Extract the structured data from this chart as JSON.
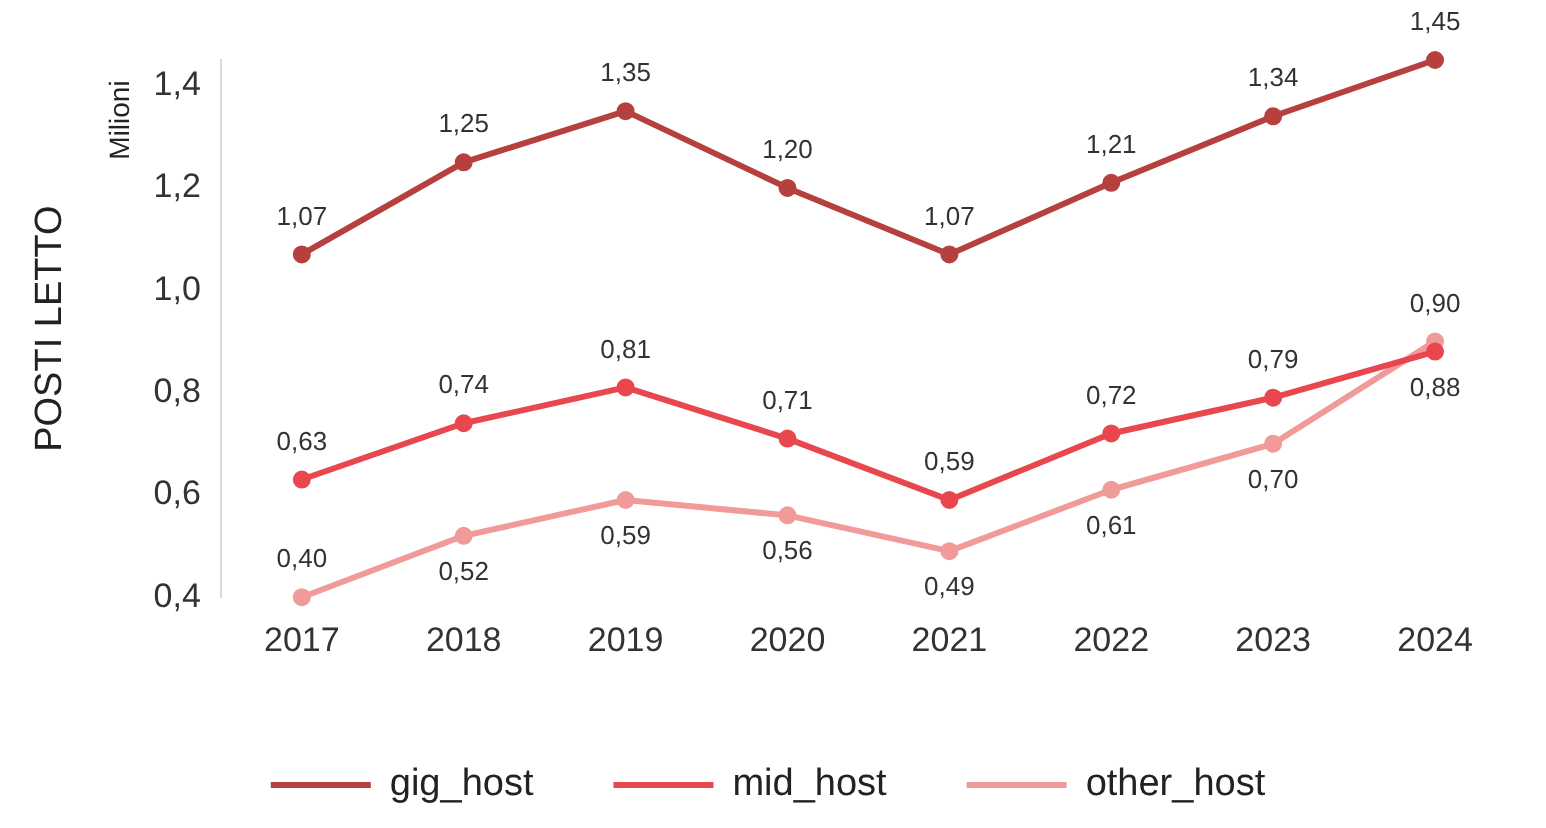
{
  "chart_data": {
    "type": "line",
    "ylabel": "POSTI LETTO",
    "annotations": [
      "Milioni"
    ],
    "categories": [
      "2017",
      "2018",
      "2019",
      "2020",
      "2021",
      "2022",
      "2023",
      "2024"
    ],
    "series": [
      {
        "name": "gig_host",
        "color": "#b5403e",
        "values": [
          1.07,
          1.25,
          1.35,
          1.2,
          1.07,
          1.21,
          1.34,
          1.45
        ],
        "value_labels": [
          "1,07",
          "1,25",
          "1,35",
          "1,20",
          "1,07",
          "1,21",
          "1,34",
          "1,45"
        ]
      },
      {
        "name": "mid_host",
        "color": "#e8474e",
        "values": [
          0.63,
          0.74,
          0.81,
          0.71,
          0.59,
          0.72,
          0.79,
          0.88
        ],
        "value_labels": [
          "0,63",
          "0,74",
          "0,81",
          "0,71",
          "0,59",
          "0,72",
          "0,79",
          "0,88"
        ]
      },
      {
        "name": "other_host",
        "color": "#f19a9a",
        "values": [
          0.4,
          0.52,
          0.59,
          0.56,
          0.49,
          0.61,
          0.7,
          0.9
        ],
        "value_labels": [
          "0,40",
          "0,52",
          "0,59",
          "0,56",
          "0,49",
          "0,61",
          "0,70",
          "0,90"
        ]
      }
    ],
    "ylim": [
      0.4,
      1.45
    ],
    "yticks": [
      {
        "value": 0.4,
        "label": "0,4"
      },
      {
        "value": 0.6,
        "label": "0,6"
      },
      {
        "value": 0.8,
        "label": "0,8"
      },
      {
        "value": 1.0,
        "label": "1,0"
      },
      {
        "value": 1.2,
        "label": "1,2"
      },
      {
        "value": 1.4,
        "label": "1,4"
      }
    ],
    "grid": false,
    "legend": "bottom",
    "marker": "circle",
    "line_style": "solid"
  }
}
